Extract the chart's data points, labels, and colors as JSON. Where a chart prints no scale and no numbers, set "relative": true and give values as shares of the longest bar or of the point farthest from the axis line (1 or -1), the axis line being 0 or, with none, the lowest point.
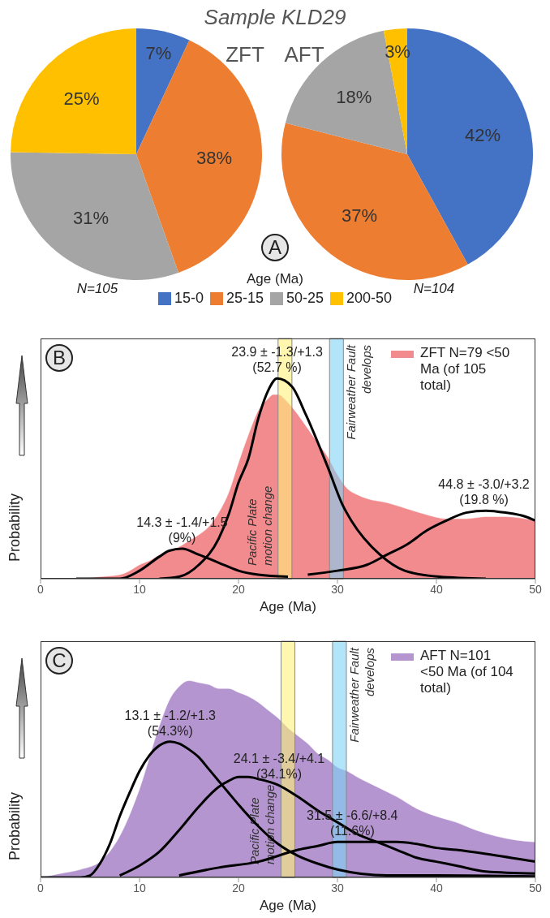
{
  "chart_data": [
    {
      "type": "pie",
      "title": "Sample KLD29",
      "subtitle": "ZFT",
      "legend_title": "Age (Ma)",
      "legend": "bottom",
      "data_labels": true,
      "categories": [
        "15-0",
        "25-15",
        "50-25",
        "200-50"
      ],
      "values": [
        7,
        38,
        31,
        25
      ],
      "value_labels": [
        "7%",
        "38%",
        "31%",
        "25%"
      ],
      "colors": [
        "#4472c4",
        "#ed7d31",
        "#a5a5a5",
        "#ffc000"
      ],
      "annotations": [
        "N=105",
        "A"
      ]
    },
    {
      "type": "pie",
      "subtitle": "AFT",
      "data_labels": true,
      "categories": [
        null,
        null,
        null,
        null
      ],
      "values": [
        42,
        37,
        18,
        3
      ],
      "value_labels": [
        "42%",
        "37%",
        "18%",
        "3%"
      ],
      "colors": [
        "#4472c4",
        "#ed7d31",
        "#a5a5a5",
        "#ffc000"
      ],
      "annotations": [
        "N=104"
      ]
    },
    {
      "type": "area",
      "relative": true,
      "xlabel": "Age (Ma)",
      "ylabel": "Probability",
      "xlim": [
        0,
        50
      ],
      "xticks": [
        0,
        10,
        20,
        30,
        40,
        50
      ],
      "legend": "top right",
      "series": [
        {
          "type": "area",
          "name": "ZFT N=79 <50 Ma (of 105 total)",
          "color": "#f28b8e",
          "x": [
            4,
            6,
            8,
            9,
            10,
            11,
            12,
            13,
            14,
            15,
            16,
            17,
            18,
            19,
            20,
            21,
            22,
            23,
            23.5,
            24,
            25,
            26,
            27,
            28,
            29,
            30,
            31,
            32,
            33,
            35,
            37,
            39,
            41,
            43,
            45,
            47,
            50
          ],
          "values": [
            0,
            0.01,
            0.02,
            0.04,
            0.07,
            0.09,
            0.12,
            0.14,
            0.16,
            0.19,
            0.22,
            0.26,
            0.33,
            0.43,
            0.58,
            0.72,
            0.84,
            0.9,
            0.92,
            0.92,
            0.88,
            0.82,
            0.75,
            0.68,
            0.61,
            0.52,
            0.45,
            0.42,
            0.4,
            0.38,
            0.35,
            0.32,
            0.3,
            0.3,
            0.31,
            0.31,
            0.29
          ]
        },
        {
          "type": "line",
          "color": "#000000",
          "x": [
            3.6,
            8,
            10,
            12,
            13,
            14.3,
            16,
            18,
            20,
            22,
            25
          ],
          "values": [
            0,
            0,
            0.04,
            0.11,
            0.14,
            0.15,
            0.12,
            0.08,
            0.04,
            0.02,
            0.01
          ]
        },
        {
          "type": "line",
          "color": "#000000",
          "x": [
            12,
            14,
            16,
            18,
            19,
            20,
            21,
            22,
            23,
            23.9,
            25.4,
            26.8,
            29,
            30.6,
            31.4,
            34.3,
            36.8,
            40.3,
            45
          ],
          "values": [
            0,
            0.01,
            0.07,
            0.2,
            0.32,
            0.48,
            0.6,
            0.8,
            0.94,
            1,
            0.96,
            0.82,
            0.56,
            0.36,
            0.29,
            0.12,
            0.04,
            0.01,
            0
          ]
        },
        {
          "type": "line",
          "color": "#000000",
          "x": [
            27,
            30,
            33,
            35,
            37,
            39,
            41,
            43,
            45,
            47,
            49,
            50
          ],
          "values": [
            0.02,
            0.04,
            0.07,
            0.12,
            0.17,
            0.24,
            0.29,
            0.33,
            0.34,
            0.33,
            0.31,
            0.29
          ]
        }
      ],
      "bands": [
        {
          "axis": "x",
          "from": 24.0,
          "to": 25.4,
          "label": "Pacific Plate\nmotion change",
          "color": "#fff27a"
        },
        {
          "axis": "x",
          "from": 29.2,
          "to": 30.6,
          "label": "Fairweather Fault\ndevelops",
          "color": "#7fd3f7"
        }
      ],
      "annotations": [
        "B",
        {
          "text": "14.3 ± -1.4/+1.5\n(9%)",
          "x": 14.3,
          "y": 0.15
        },
        {
          "text": "23.9 ± -1.3/+1.3\n(52.7 %)",
          "x": 23.9,
          "y": 1
        },
        {
          "text": "44.8 ± -3.0/+3.2\n(19.8 %)",
          "x": 44.8,
          "y": 0.34
        }
      ]
    },
    {
      "type": "area",
      "relative": true,
      "xlabel": "Age (Ma)",
      "ylabel": "Probability",
      "xlim": [
        0,
        50
      ],
      "xticks": [
        0,
        10,
        20,
        30,
        40,
        50
      ],
      "legend": "top right",
      "series": [
        {
          "type": "area",
          "name": "AFT N=101 <50 Ma (of 104 total)",
          "color": "#b595d0",
          "x": [
            0,
            2,
            4,
            6,
            8,
            10,
            12,
            13,
            14,
            15,
            16,
            17,
            18,
            19,
            20,
            21,
            22,
            23,
            24,
            25,
            26,
            27,
            28,
            29,
            30,
            31,
            32,
            34,
            36,
            38,
            40,
            42,
            44,
            46,
            48,
            50
          ],
          "values": [
            0,
            0.02,
            0.04,
            0.08,
            0.21,
            0.45,
            0.77,
            0.9,
            0.97,
            1,
            0.99,
            0.98,
            0.96,
            0.96,
            0.94,
            0.92,
            0.89,
            0.85,
            0.81,
            0.76,
            0.72,
            0.68,
            0.63,
            0.6,
            0.56,
            0.54,
            0.51,
            0.46,
            0.41,
            0.35,
            0.31,
            0.28,
            0.24,
            0.21,
            0.19,
            0.18
          ]
        },
        {
          "type": "line",
          "color": "#000000",
          "x": [
            0,
            4,
            5,
            6,
            7,
            8,
            9,
            10,
            11,
            12,
            13.1,
            14,
            15,
            16,
            17,
            18,
            19,
            20,
            22,
            24,
            26,
            28,
            30,
            35,
            40,
            50
          ],
          "values": [
            0,
            0,
            0.01,
            0.07,
            0.17,
            0.31,
            0.43,
            0.54,
            0.62,
            0.67,
            0.69,
            0.68,
            0.65,
            0.61,
            0.55,
            0.49,
            0.43,
            0.37,
            0.26,
            0.17,
            0.11,
            0.07,
            0.04,
            0.01,
            0.01,
            0.005
          ]
        },
        {
          "type": "line",
          "color": "#000000",
          "x": [
            8,
            10,
            12,
            14,
            16,
            18,
            19,
            20,
            21,
            22,
            24,
            26,
            28,
            30,
            32,
            34,
            36,
            38,
            40,
            42,
            45,
            50
          ],
          "values": [
            0.01,
            0.06,
            0.13,
            0.24,
            0.36,
            0.46,
            0.49,
            0.51,
            0.51,
            0.5,
            0.47,
            0.41,
            0.34,
            0.28,
            0.22,
            0.18,
            0.14,
            0.1,
            0.08,
            0.06,
            0.03,
            0.02
          ]
        },
        {
          "type": "line",
          "color": "#000000",
          "x": [
            14,
            18,
            22,
            26,
            28,
            30,
            32,
            34,
            36,
            38,
            40,
            42,
            45,
            50
          ],
          "values": [
            0.01,
            0.05,
            0.08,
            0.14,
            0.16,
            0.18,
            0.18,
            0.18,
            0.18,
            0.17,
            0.15,
            0.14,
            0.12,
            0.08
          ]
        }
      ],
      "bands": [
        {
          "axis": "x",
          "from": 24.3,
          "to": 25.7,
          "label": "Pacific Plate\nmotion change",
          "color": "#fff27a"
        },
        {
          "axis": "x",
          "from": 29.5,
          "to": 30.9,
          "label": "Fairweather Fault\ndevelops",
          "color": "#7fd3f7"
        }
      ],
      "annotations": [
        "C",
        {
          "text": "13.1 ± -1.2/+1.3\n(54.3%)",
          "x": 13.1,
          "y": 0.69
        },
        {
          "text": "24.1 ± -3.4/+4.1\n(34.1%)",
          "x": 24.1,
          "y": 0.47
        },
        {
          "text": "31.5 ± -6.6/+8.4\n(11.6%)",
          "x": 31.5,
          "y": 0.18
        }
      ]
    }
  ]
}
